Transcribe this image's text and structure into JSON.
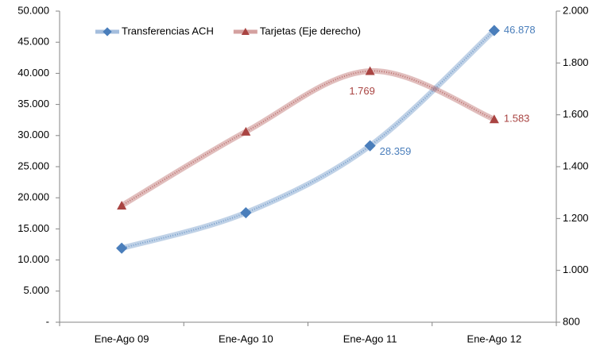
{
  "chart_data": {
    "type": "line",
    "categories": [
      "Ene-Ago 09",
      "Ene-Ago 10",
      "Ene-Ago 11",
      "Ene-Ago 12"
    ],
    "series": [
      {
        "name": "Transferencias ACH",
        "color": "#4a7ebb",
        "values": [
          11900,
          17600,
          28359,
          46878
        ],
        "value_labels": [
          null,
          null,
          "28.359",
          "46.878"
        ]
      },
      {
        "name": "Tarjetas (Eje derecho)",
        "color": "#a94442",
        "axis": "y2",
        "values": [
          1250,
          1535,
          1769,
          1583
        ],
        "value_labels": [
          null,
          null,
          "1.769",
          "1.583"
        ]
      }
    ],
    "ylim": [
      0,
      50000
    ],
    "yticks": [
      {
        "value": 0,
        "label": "-"
      },
      {
        "value": 5000,
        "label": "5.000"
      },
      {
        "value": 10000,
        "label": "10.000"
      },
      {
        "value": 15000,
        "label": "15.000"
      },
      {
        "value": 20000,
        "label": "20.000"
      },
      {
        "value": 25000,
        "label": "25.000"
      },
      {
        "value": 30000,
        "label": "30.000"
      },
      {
        "value": 35000,
        "label": "35.000"
      },
      {
        "value": 40000,
        "label": "40.000"
      },
      {
        "value": 45000,
        "label": "45.000"
      },
      {
        "value": 50000,
        "label": "50.000"
      }
    ],
    "y2lim": [
      800,
      2000
    ],
    "y2ticks": [
      800,
      {
        "value": 1000,
        "label": "1.000"
      },
      {
        "value": 1200,
        "label": "1.200"
      },
      {
        "value": 1400,
        "label": "1.400"
      },
      {
        "value": 1600,
        "label": "1.600"
      },
      {
        "value": 1800,
        "label": "1.800"
      },
      {
        "value": 2000,
        "label": "2.000"
      }
    ],
    "legend": "top-left",
    "grid": false
  }
}
